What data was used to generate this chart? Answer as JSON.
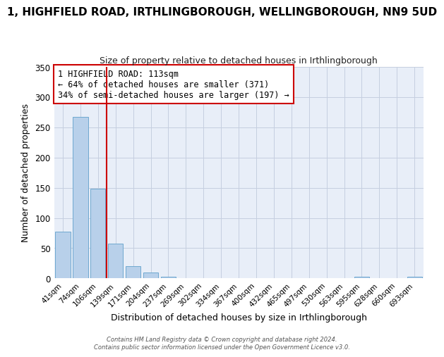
{
  "title": "1, HIGHFIELD ROAD, IRTHLINGBOROUGH, WELLINGBOROUGH, NN9 5UD",
  "subtitle": "Size of property relative to detached houses in Irthlingborough",
  "xlabel": "Distribution of detached houses by size in Irthlingborough",
  "ylabel": "Number of detached properties",
  "bar_labels": [
    "41sqm",
    "74sqm",
    "106sqm",
    "139sqm",
    "171sqm",
    "204sqm",
    "237sqm",
    "269sqm",
    "302sqm",
    "334sqm",
    "367sqm",
    "400sqm",
    "432sqm",
    "465sqm",
    "497sqm",
    "530sqm",
    "563sqm",
    "595sqm",
    "628sqm",
    "660sqm",
    "693sqm"
  ],
  "bar_values": [
    77,
    267,
    148,
    58,
    20,
    10,
    3,
    0,
    0,
    0,
    0,
    0,
    0,
    0,
    0,
    0,
    0,
    3,
    0,
    0,
    3
  ],
  "bar_color": "#b8d0ea",
  "bar_edge_color": "#6fa8d0",
  "ylim": [
    0,
    350
  ],
  "yticks": [
    0,
    50,
    100,
    150,
    200,
    250,
    300,
    350
  ],
  "vline_x": 2.5,
  "vline_color": "#cc0000",
  "annotation_title": "1 HIGHFIELD ROAD: 113sqm",
  "annotation_line1": "← 64% of detached houses are smaller (371)",
  "annotation_line2": "34% of semi-detached houses are larger (197) →",
  "annotation_box_color": "#ffffff",
  "annotation_box_edge_color": "#cc0000",
  "footer_line1": "Contains HM Land Registry data © Crown copyright and database right 2024.",
  "footer_line2": "Contains public sector information licensed under the Open Government Licence v3.0.",
  "plot_bg_color": "#e8eef8",
  "fig_bg_color": "#ffffff",
  "grid_color": "#c5cfe0",
  "title_fontsize": 11,
  "subtitle_fontsize": 9
}
